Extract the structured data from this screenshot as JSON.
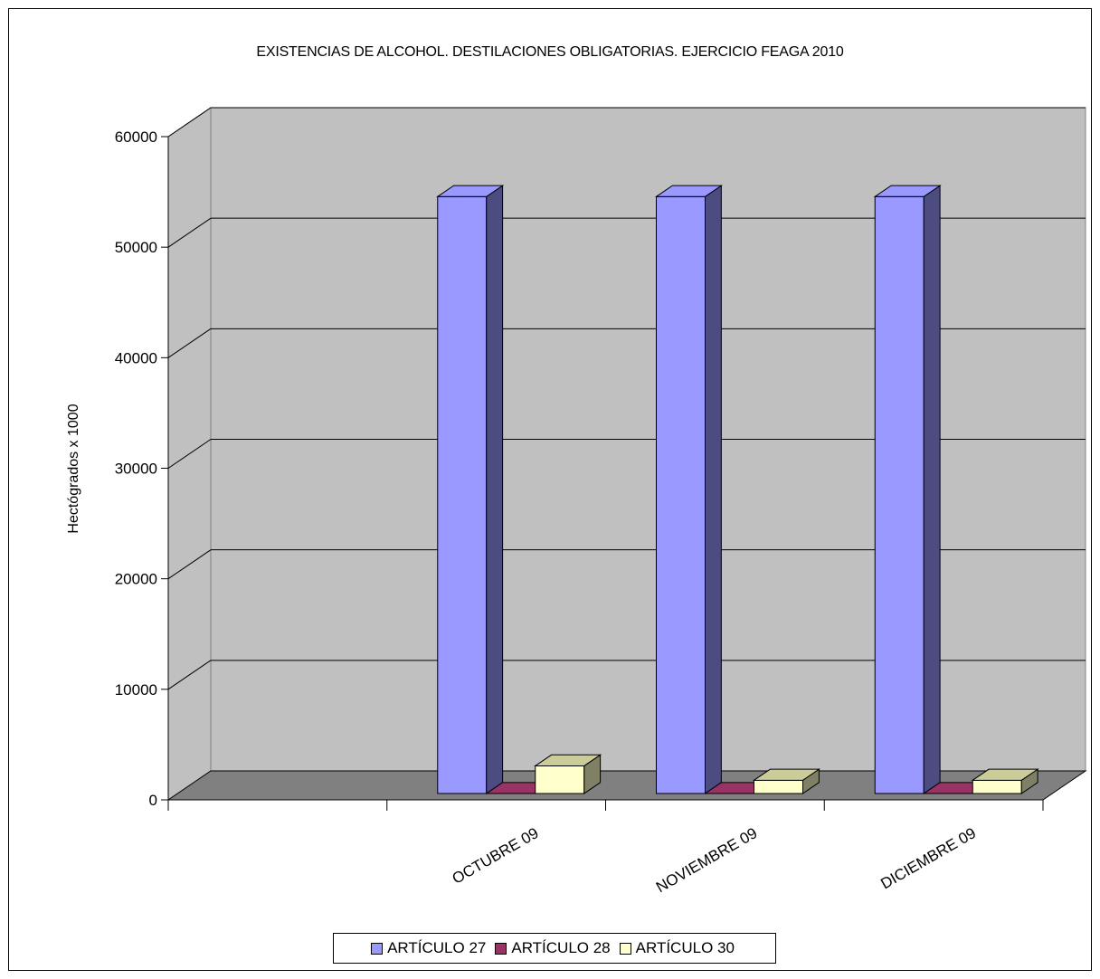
{
  "chart_data": {
    "type": "bar",
    "title": "EXISTENCIAS DE ALCOHOL. DESTILACIONES OBLIGATORIAS. EJERCICIO FEAGA 2010",
    "ylabel": "Hectógrados x 1000",
    "xlabel": "",
    "categories": [
      "",
      "OCTUBRE 09",
      "NOVIEMBRE 09",
      "DICIEMBRE 09"
    ],
    "series": [
      {
        "name": "ARTÍCULO 27",
        "values": [
          null,
          54000,
          54000,
          54000
        ],
        "color": "#9999ff"
      },
      {
        "name": "ARTÍCULO 28",
        "values": [
          null,
          0,
          0,
          0
        ],
        "color": "#993366"
      },
      {
        "name": "ARTÍCULO 30",
        "values": [
          null,
          2500,
          1200,
          1200
        ],
        "color": "#ffffcc"
      }
    ],
    "ylim": [
      0,
      60000
    ],
    "yticks": [
      "0",
      "10000",
      "20000",
      "30000",
      "40000",
      "50000",
      "60000"
    ],
    "grid": true,
    "legend_position": "bottom",
    "wall_color": "#c0c0c0",
    "floor_color": "#808080"
  }
}
